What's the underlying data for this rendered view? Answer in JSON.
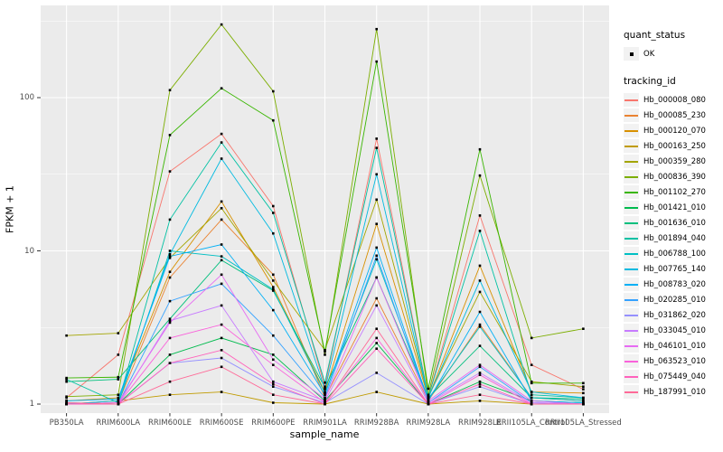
{
  "colors": {
    "panel_bg": "#ebebeb",
    "grid_major": "#ffffff",
    "grid_minor": "#ffffff",
    "axis_text": "#4d4d4d",
    "axis_title": "#000000",
    "tick_mark": "#333333",
    "marker": "#000000",
    "legend_key_bg": "#f2f2f2"
  },
  "legend": {
    "quant_status_title": "quant_status",
    "quant_status_items": [
      {
        "label": "OK",
        "marker": "black-square-point"
      }
    ],
    "tracking_id_title": "tracking_id"
  },
  "chart_data": {
    "type": "line",
    "title": "",
    "xlabel": "sample_name",
    "ylabel": "FPKM + 1",
    "y_scale": "log10",
    "y_ticks": [
      1,
      10,
      100
    ],
    "ylim": [
      1,
      400
    ],
    "grid": "on",
    "legend_position": "right",
    "point_shape": "filled-square",
    "categories": [
      "PB350LA",
      "RRIM600LA",
      "RRIM600LE",
      "RRIM600SE",
      "RRIM600PE",
      "RRIM901LA",
      "RRIM928BA",
      "RRIM928LA",
      "RRIM928LE",
      "RRII105LA_Control",
      "RRII105LA_Stressed"
    ],
    "series": [
      {
        "name": "Hb_000008_080",
        "color": "#F8766D",
        "values": [
          1.1,
          2.1,
          33,
          58,
          19.6,
          1.3,
          54,
          1.12,
          17,
          1.8,
          1.25
        ]
      },
      {
        "name": "Hb_000085_230",
        "color": "#EA8331",
        "values": [
          1.0,
          1.02,
          6.7,
          16,
          7.0,
          1.1,
          4.9,
          1.05,
          3.3,
          1.1,
          1.05
        ]
      },
      {
        "name": "Hb_000120_070",
        "color": "#D89000",
        "values": [
          1.05,
          1.1,
          7.3,
          21,
          5.8,
          1.2,
          15,
          1.1,
          8.0,
          1.2,
          1.18
        ]
      },
      {
        "name": "Hb_000163_250",
        "color": "#C09B00",
        "values": [
          1.0,
          1.05,
          1.15,
          1.2,
          1.02,
          1.0,
          1.2,
          1.0,
          1.05,
          1.0,
          1.0
        ]
      },
      {
        "name": "Hb_000359_280",
        "color": "#A3A500",
        "values": [
          2.8,
          2.9,
          9.0,
          19,
          6.4,
          2.25,
          21.6,
          1.12,
          5.4,
          1.4,
          1.3
        ]
      },
      {
        "name": "Hb_000836_390",
        "color": "#7CAE00",
        "values": [
          1.12,
          1.15,
          112,
          300,
          110,
          2.1,
          280,
          1.15,
          31,
          2.7,
          3.1
        ]
      },
      {
        "name": "Hb_001102_270",
        "color": "#39B600",
        "values": [
          1.48,
          1.5,
          57,
          115,
          71,
          2.2,
          172,
          1.26,
          46,
          1.37,
          1.37
        ]
      },
      {
        "name": "Hb_001421_010",
        "color": "#00BB4E",
        "values": [
          1.0,
          1.0,
          2.1,
          2.7,
          2.1,
          1.05,
          2.5,
          1.0,
          1.4,
          1.05,
          1.02
        ]
      },
      {
        "name": "Hb_001636_010",
        "color": "#00BF7D",
        "values": [
          1.4,
          1.45,
          3.6,
          8.7,
          5.5,
          1.28,
          6.7,
          1.1,
          2.4,
          1.1,
          1.08
        ]
      },
      {
        "name": "Hb_001894_040",
        "color": "#00C1A3",
        "values": [
          1.45,
          1.02,
          16,
          51,
          17.7,
          1.38,
          47,
          1.12,
          13.5,
          1.15,
          1.1
        ]
      },
      {
        "name": "Hb_006788_100",
        "color": "#00BFC4",
        "values": [
          1.02,
          1.0,
          10,
          9.2,
          5.6,
          1.18,
          8.8,
          1.08,
          3.2,
          1.1,
          1.05
        ]
      },
      {
        "name": "Hb_007765_140",
        "color": "#00BAE0",
        "values": [
          1.0,
          1.05,
          9.5,
          40,
          13,
          1.25,
          31.6,
          1.1,
          6.4,
          1.2,
          1.1
        ]
      },
      {
        "name": "Hb_008783_020",
        "color": "#00B0F6",
        "values": [
          1.05,
          1.08,
          9.2,
          11,
          4.1,
          1.15,
          10.5,
          1.05,
          4.0,
          1.05,
          1.02
        ]
      },
      {
        "name": "Hb_020285_010",
        "color": "#35A2FF",
        "values": [
          1.0,
          1.0,
          4.7,
          6.1,
          2.8,
          1.1,
          9.3,
          1.02,
          1.75,
          1.02,
          1.0
        ]
      },
      {
        "name": "Hb_031862_020",
        "color": "#9590FF",
        "values": [
          1.0,
          1.0,
          1.85,
          2.0,
          1.3,
          1.02,
          1.6,
          1.0,
          1.3,
          1.0,
          1.0
        ]
      },
      {
        "name": "Hb_033045_010",
        "color": "#C77CFF",
        "values": [
          1.0,
          1.0,
          3.5,
          4.4,
          1.4,
          1.05,
          4.4,
          1.02,
          1.6,
          1.02,
          1.0
        ]
      },
      {
        "name": "Hb_046101_010",
        "color": "#E76BF3",
        "values": [
          1.0,
          1.02,
          3.4,
          7.0,
          1.95,
          1.08,
          6.7,
          1.05,
          1.8,
          1.05,
          1.0
        ]
      },
      {
        "name": "Hb_063523_010",
        "color": "#FA62DB",
        "values": [
          1.0,
          1.0,
          2.7,
          3.3,
          1.8,
          1.02,
          2.7,
          1.0,
          1.55,
          1.0,
          1.0
        ]
      },
      {
        "name": "Hb_075449_040",
        "color": "#FF62BC",
        "values": [
          1.0,
          1.0,
          1.85,
          2.25,
          1.35,
          1.0,
          2.3,
          1.0,
          1.35,
          1.0,
          1.0
        ]
      },
      {
        "name": "Hb_187991_010",
        "color": "#FF6A98",
        "values": [
          1.02,
          1.0,
          1.4,
          1.75,
          1.15,
          1.0,
          3.1,
          1.0,
          1.15,
          1.0,
          1.0
        ]
      }
    ]
  }
}
